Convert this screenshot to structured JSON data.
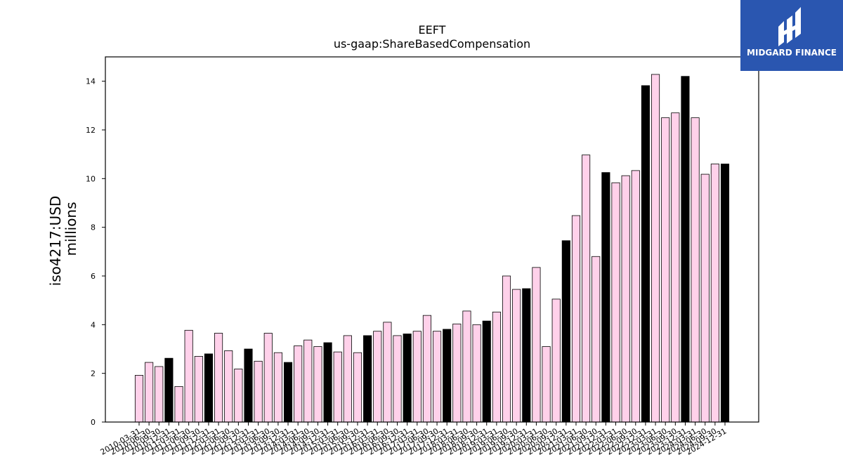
{
  "brand": {
    "name": "MIDGARD FINANCE",
    "color": "#2a56b0"
  },
  "colors": {
    "bar_default": "#ffd1ea",
    "bar_highlight": "#000000",
    "edge": "#000000"
  },
  "chart_data": {
    "type": "bar",
    "title": "EEFT",
    "subtitle": "us-gaap:ShareBasedCompensation",
    "ylabel": "iso4217:USD",
    "ylabel2": "millions",
    "xlabel": "",
    "ylim": [
      0,
      15
    ],
    "yticks": [
      0,
      2,
      4,
      6,
      8,
      10,
      12,
      14
    ],
    "grid": false,
    "categories": [
      "2010-03-31",
      "2010-06-30",
      "2010-09-30",
      "2010-12-31",
      "2011-03-31",
      "2011-06-30",
      "2011-09-30",
      "2011-12-31",
      "2012-03-31",
      "2012-06-30",
      "2012-09-30",
      "2012-12-31",
      "2013-03-31",
      "2013-06-30",
      "2013-09-30",
      "2013-12-31",
      "2014-03-31",
      "2014-06-30",
      "2014-09-30",
      "2014-12-31",
      "2015-03-31",
      "2015-06-30",
      "2015-09-30",
      "2015-12-31",
      "2016-03-31",
      "2016-06-30",
      "2016-09-30",
      "2016-12-31",
      "2017-03-31",
      "2017-06-30",
      "2017-09-30",
      "2017-12-31",
      "2018-03-31",
      "2018-06-30",
      "2018-09-30",
      "2018-12-31",
      "2019-03-31",
      "2019-06-30",
      "2019-09-30",
      "2019-12-31",
      "2020-03-31",
      "2020-06-30",
      "2020-09-30",
      "2020-12-31",
      "2021-03-31",
      "2021-06-30",
      "2021-09-30",
      "2021-12-31",
      "2022-03-31",
      "2022-06-30",
      "2022-09-30",
      "2022-12-31",
      "2023-03-31",
      "2023-06-30",
      "2023-09-30",
      "2023-12-31",
      "2024-03-31",
      "2024-06-30",
      "2024-09-30",
      "2024-12-31"
    ],
    "values": [
      1.92,
      2.45,
      2.28,
      2.62,
      1.46,
      3.77,
      2.7,
      2.8,
      3.65,
      2.93,
      2.18,
      3.0,
      2.5,
      3.65,
      2.85,
      2.45,
      3.13,
      3.37,
      3.1,
      3.26,
      2.88,
      3.55,
      2.85,
      3.55,
      3.73,
      4.1,
      3.55,
      3.62,
      3.73,
      4.38,
      3.73,
      3.81,
      4.03,
      4.56,
      4.0,
      4.15,
      4.52,
      6.0,
      5.45,
      5.48,
      6.35,
      3.1,
      5.05,
      7.45,
      8.48,
      10.97,
      6.8,
      10.25,
      9.83,
      10.12,
      10.33,
      13.82,
      14.28,
      12.5,
      12.7,
      14.2,
      12.5,
      10.18,
      10.6,
      10.6
    ],
    "highlight_indices": [
      3,
      7,
      11,
      15,
      19,
      23,
      27,
      31,
      35,
      39,
      43,
      47,
      51,
      55,
      59
    ]
  }
}
